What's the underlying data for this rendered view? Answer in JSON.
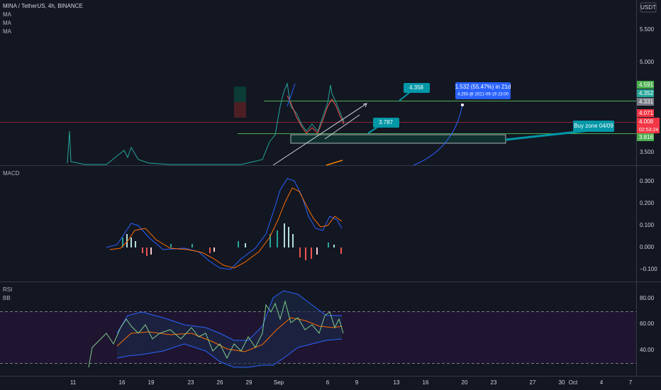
{
  "header": {
    "symbol": "MINA / TetherUS, 4h, BINANCE",
    "indicators": [
      "MA",
      "MA",
      "MA"
    ],
    "currency": "USDT"
  },
  "price_axis": {
    "labels": [
      "5.500",
      "5.000",
      "3.500"
    ],
    "tags": [
      "4.591",
      "4.352",
      "4.331",
      "4.071",
      "4.008",
      "02:53:24",
      "3.816"
    ]
  },
  "annotations": {
    "resistance": "4.358",
    "support": "3.787",
    "projection_title": "1.532 (55.47%) in 21d",
    "projection_detail": "4.293 @ 2021-09-19  23:00",
    "buy_zone": "Buy zone 04/09"
  },
  "macd": {
    "title": "MACD",
    "labels": [
      "0.300",
      "0.200",
      "0.100",
      "0.000",
      "−0.100"
    ]
  },
  "rsi": {
    "title": "RSI",
    "bb": "BB",
    "labels": [
      "80.00",
      "60.00",
      "40.00"
    ]
  },
  "time_axis": {
    "labels": [
      "11",
      "16",
      "19",
      "23",
      "26",
      "29",
      "Sep",
      "6",
      "9",
      "13",
      "16",
      "20",
      "23",
      "27",
      "30",
      "Oct",
      "4",
      "7"
    ]
  }
}
